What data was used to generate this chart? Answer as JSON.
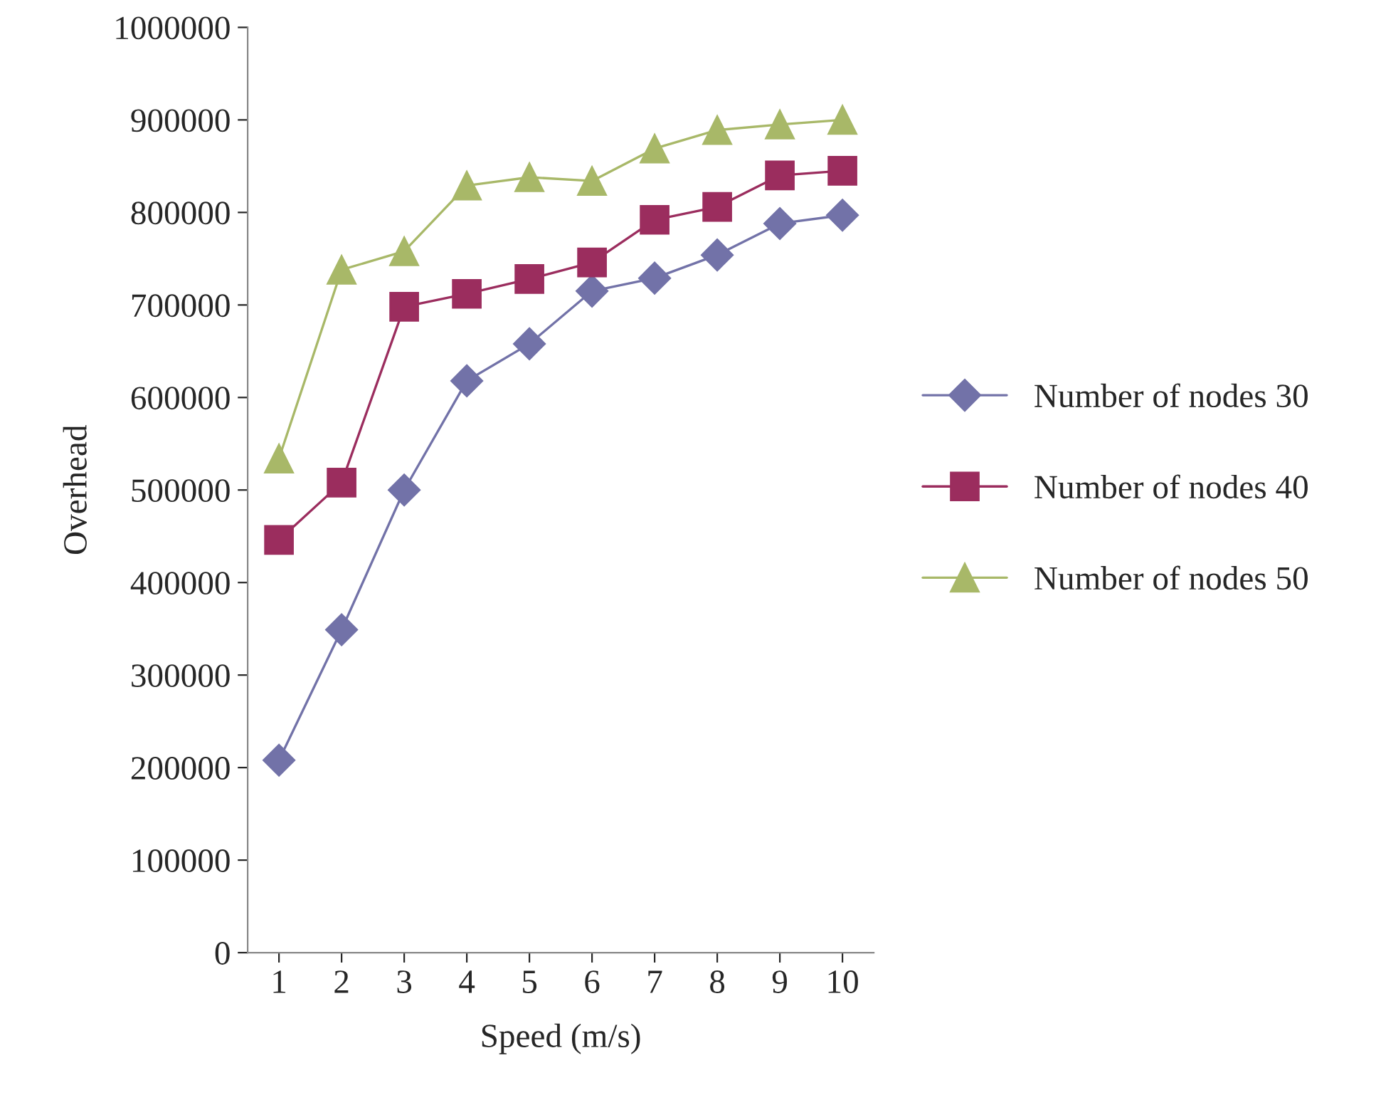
{
  "chart_data": {
    "type": "line",
    "xlabel": "Speed (m/s)",
    "ylabel": "Overhead",
    "categories": [
      "1",
      "2",
      "3",
      "4",
      "5",
      "6",
      "7",
      "8",
      "9",
      "10"
    ],
    "series": [
      {
        "name": "Number of nodes 30",
        "color": "#7272a8",
        "marker": "diamond",
        "values": [
          208000,
          349000,
          500000,
          618000,
          658000,
          715000,
          729000,
          754000,
          788000,
          797000
        ]
      },
      {
        "name": "Number of nodes 40",
        "color": "#9b2d5e",
        "marker": "square",
        "values": [
          446000,
          508000,
          698000,
          712000,
          728000,
          746000,
          792000,
          806000,
          840000,
          845000
        ]
      },
      {
        "name": "Number of nodes 50",
        "color": "#a8b868",
        "marker": "triangle",
        "values": [
          534000,
          738000,
          758000,
          829000,
          838000,
          834000,
          869000,
          889000,
          895000,
          900000
        ]
      }
    ],
    "ylim": [
      0,
      1000000
    ],
    "yticks": [
      0,
      100000,
      200000,
      300000,
      400000,
      500000,
      600000,
      700000,
      800000,
      900000,
      1000000
    ],
    "grid": false,
    "legend": "right"
  }
}
